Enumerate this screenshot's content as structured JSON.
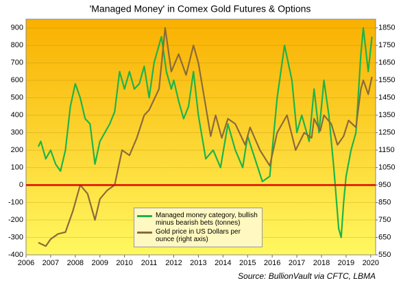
{
  "chart_data": {
    "type": "line",
    "title": "'Managed Money' in Comex Gold Futures & Options",
    "source": "Source: BullionVault via CFTC, LBMA",
    "xlim": [
      2006,
      2020.2
    ],
    "xticks": [
      2006,
      2007,
      2008,
      2009,
      2010,
      2011,
      2012,
      2013,
      2014,
      2015,
      2016,
      2017,
      2018,
      2019,
      2020
    ],
    "ylim": [
      -400,
      950
    ],
    "yticks": [
      -400,
      -300,
      -200,
      -100,
      0,
      100,
      200,
      300,
      400,
      500,
      600,
      700,
      800,
      900
    ],
    "y2lim": [
      550,
      1900
    ],
    "y2ticks": [
      550,
      650,
      750,
      850,
      950,
      1050,
      1150,
      1250,
      1350,
      1450,
      1550,
      1650,
      1750,
      1850
    ],
    "grid": true,
    "zero_line_color": "#e00000",
    "series": [
      {
        "name": "Managed money category, bullish minus bearish bets (tonnes)",
        "color": "#1db34a",
        "x": [
          2006.5,
          2006.6,
          2006.8,
          2007.0,
          2007.2,
          2007.4,
          2007.6,
          2007.8,
          2008.0,
          2008.2,
          2008.4,
          2008.6,
          2008.8,
          2009.0,
          2009.2,
          2009.4,
          2009.6,
          2009.8,
          2010.0,
          2010.2,
          2010.4,
          2010.6,
          2010.8,
          2011.0,
          2011.2,
          2011.5,
          2011.7,
          2011.9,
          2012.0,
          2012.2,
          2012.4,
          2012.6,
          2012.8,
          2013.0,
          2013.3,
          2013.6,
          2013.9,
          2014.2,
          2014.5,
          2014.8,
          2015.0,
          2015.3,
          2015.6,
          2015.9,
          2016.2,
          2016.5,
          2016.8,
          2017.0,
          2017.2,
          2017.5,
          2017.7,
          2017.9,
          2018.1,
          2018.3,
          2018.5,
          2018.7,
          2018.8,
          2018.9,
          2019.0,
          2019.2,
          2019.4,
          2019.6,
          2019.7,
          2019.9,
          2020.05
        ],
        "values": [
          220,
          250,
          150,
          200,
          120,
          80,
          200,
          450,
          580,
          500,
          380,
          350,
          120,
          250,
          300,
          350,
          420,
          650,
          550,
          650,
          550,
          580,
          680,
          500,
          700,
          850,
          650,
          550,
          600,
          480,
          380,
          450,
          650,
          400,
          150,
          200,
          100,
          350,
          200,
          100,
          280,
          150,
          20,
          50,
          500,
          800,
          600,
          300,
          400,
          250,
          550,
          300,
          600,
          400,
          100,
          -250,
          -300,
          -100,
          50,
          200,
          300,
          750,
          900,
          650,
          850
        ]
      },
      {
        "name": "Gold price in US Dollars per ounce (right axis)",
        "color": "#8b6a3a",
        "axis": "y2",
        "x": [
          2006.5,
          2006.8,
          2007.0,
          2007.3,
          2007.6,
          2007.9,
          2008.2,
          2008.5,
          2008.8,
          2009.0,
          2009.3,
          2009.6,
          2009.9,
          2010.2,
          2010.5,
          2010.8,
          2011.0,
          2011.4,
          2011.65,
          2011.9,
          2012.2,
          2012.5,
          2012.8,
          2013.0,
          2013.3,
          2013.5,
          2013.7,
          2013.95,
          2014.2,
          2014.5,
          2014.9,
          2015.1,
          2015.5,
          2015.9,
          2016.2,
          2016.6,
          2016.95,
          2017.3,
          2017.6,
          2017.7,
          2017.95,
          2018.1,
          2018.4,
          2018.65,
          2018.9,
          2019.1,
          2019.4,
          2019.6,
          2019.7,
          2019.9,
          2020.05
        ],
        "values": [
          620,
          600,
          640,
          670,
          680,
          800,
          950,
          900,
          750,
          870,
          920,
          950,
          1150,
          1120,
          1220,
          1350,
          1380,
          1500,
          1850,
          1600,
          1700,
          1580,
          1750,
          1650,
          1400,
          1230,
          1350,
          1220,
          1330,
          1300,
          1180,
          1280,
          1150,
          1060,
          1250,
          1350,
          1150,
          1250,
          1220,
          1330,
          1260,
          1350,
          1300,
          1180,
          1230,
          1320,
          1280,
          1500,
          1550,
          1470,
          1570
        ]
      }
    ]
  }
}
